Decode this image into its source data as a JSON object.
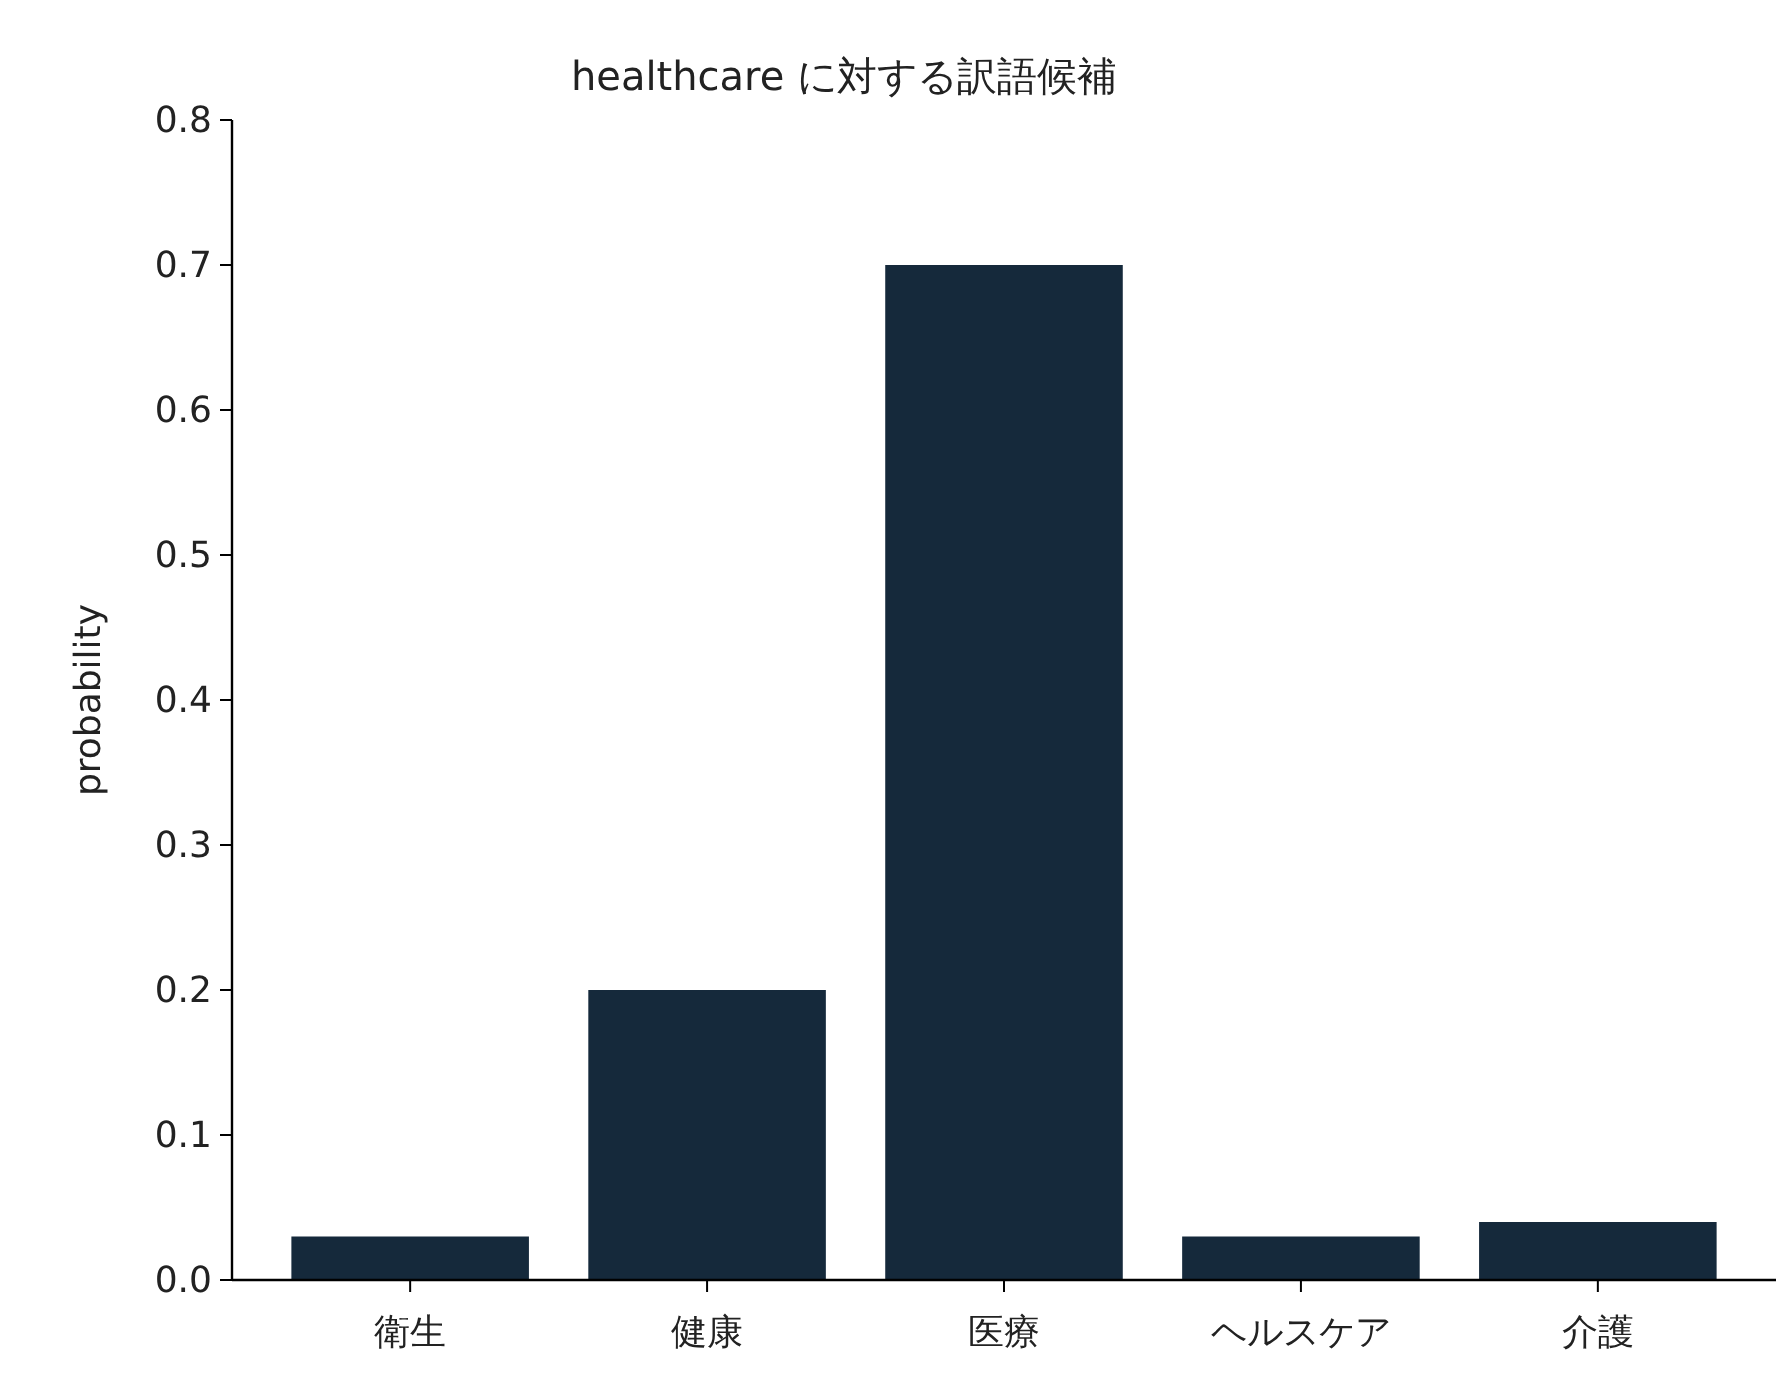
{
  "chart_data": {
    "type": "bar",
    "title": "healthcare に対する訳語候補",
    "ylabel": "probability",
    "categories": [
      "衛生",
      "健康",
      "医療",
      "ヘルスケア",
      "介護"
    ],
    "values": [
      0.03,
      0.2,
      0.7,
      0.03,
      0.04
    ],
    "color": "#15293b",
    "ylim": [
      0,
      0.8
    ],
    "yticks": [
      {
        "value": 0,
        "label": "0.0"
      },
      0.1,
      0.2,
      0.3,
      0.4,
      0.5,
      0.6,
      0.7,
      0.8
    ],
    "grid": false
  }
}
